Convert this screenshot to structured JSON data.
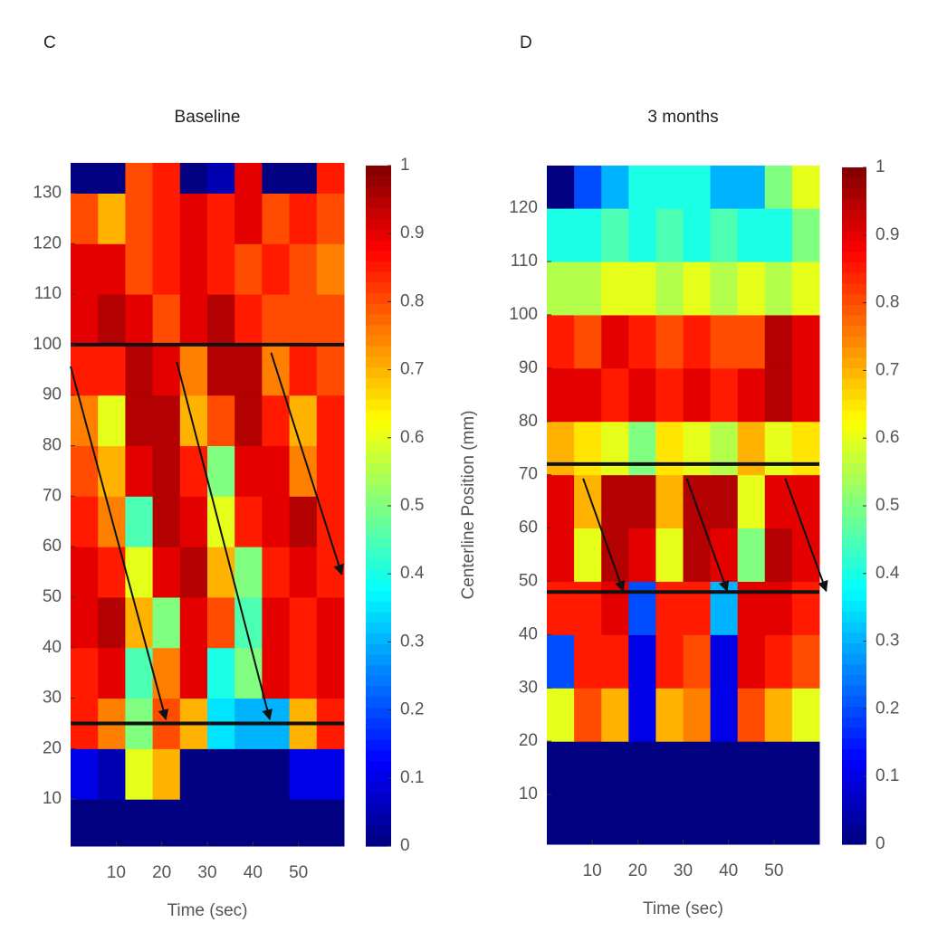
{
  "chart_data": [
    {
      "type": "heatmap",
      "panel": "C",
      "title": "Baseline",
      "xlabel": "Time (sec)",
      "xlim": [
        0,
        60
      ],
      "xticks": [
        10,
        20,
        30,
        40,
        50
      ],
      "ylim": [
        0,
        136
      ],
      "yticks": [
        10,
        20,
        30,
        40,
        50,
        60,
        70,
        80,
        90,
        100,
        110,
        120,
        130
      ],
      "xbins": [
        0,
        6,
        12,
        18,
        24,
        30,
        36,
        42,
        48,
        54,
        60
      ],
      "ybins": [
        0,
        10,
        20,
        30,
        40,
        50,
        60,
        70,
        80,
        90,
        100,
        110,
        120,
        130,
        136
      ],
      "z": [
        [
          0,
          0,
          0,
          0,
          0,
          0,
          0,
          0,
          0,
          0
        ],
        [
          0.1,
          0.05,
          0.6,
          0.7,
          0,
          0,
          0,
          0,
          0.1,
          0.1
        ],
        [
          0.85,
          0.75,
          0.5,
          0.8,
          0.7,
          0.35,
          0.3,
          0.3,
          0.7,
          0.85
        ],
        [
          0.85,
          0.9,
          0.45,
          0.75,
          0.9,
          0.4,
          0.5,
          0.9,
          0.85,
          0.9
        ],
        [
          0.9,
          0.95,
          0.7,
          0.5,
          0.9,
          0.8,
          0.45,
          0.9,
          0.85,
          0.9
        ],
        [
          0.9,
          0.85,
          0.6,
          0.9,
          0.95,
          0.7,
          0.5,
          0.85,
          0.9,
          0.85
        ],
        [
          0.85,
          0.75,
          0.45,
          0.95,
          0.9,
          0.6,
          0.85,
          0.9,
          0.95,
          0.85
        ],
        [
          0.8,
          0.7,
          0.9,
          0.95,
          0.85,
          0.5,
          0.9,
          0.9,
          0.75,
          0.85
        ],
        [
          0.75,
          0.6,
          0.95,
          0.95,
          0.7,
          0.8,
          0.95,
          0.85,
          0.7,
          0.85
        ],
        [
          0.85,
          0.85,
          0.95,
          0.9,
          0.75,
          0.95,
          0.95,
          0.75,
          0.85,
          0.8
        ],
        [
          0.9,
          0.95,
          0.9,
          0.8,
          0.9,
          0.95,
          0.85,
          0.8,
          0.8,
          0.8
        ],
        [
          0.9,
          0.9,
          0.8,
          0.85,
          0.9,
          0.85,
          0.8,
          0.85,
          0.8,
          0.75
        ],
        [
          0.8,
          0.7,
          0.8,
          0.85,
          0.9,
          0.85,
          0.9,
          0.8,
          0.85,
          0.8
        ],
        [
          0,
          0,
          0.8,
          0.85,
          0,
          0.05,
          0.9,
          0,
          0,
          0.85
        ]
      ],
      "hlines": [
        100,
        25
      ],
      "arrows": [
        [
          [
            0,
            95.7
          ],
          [
            20.9,
            25.8
          ]
        ],
        [
          [
            23.3,
            96.6
          ],
          [
            43.7,
            25.8
          ]
        ],
        [
          [
            44,
            98.4
          ],
          [
            59.5,
            54.5
          ]
        ]
      ],
      "clim": [
        0,
        1
      ],
      "cticks": [
        0,
        0.1,
        0.2,
        0.3,
        0.4,
        0.5,
        0.6,
        0.7,
        0.8,
        0.9,
        1
      ]
    },
    {
      "type": "heatmap",
      "panel": "D",
      "title": "3 months",
      "xlabel": "Time (sec)",
      "ylabel": "Centerline Position (mm)",
      "xlim": [
        0,
        60
      ],
      "xticks": [
        10,
        20,
        30,
        40,
        50
      ],
      "ylim": [
        0,
        128
      ],
      "yticks": [
        10,
        20,
        30,
        40,
        50,
        60,
        70,
        80,
        90,
        100,
        110,
        120
      ],
      "xbins": [
        0,
        6,
        12,
        18,
        24,
        30,
        36,
        42,
        48,
        54,
        60
      ],
      "ybins": [
        0,
        10,
        20,
        30,
        40,
        50,
        60,
        70,
        80,
        90,
        100,
        110,
        120,
        128
      ],
      "z": [
        [
          0,
          0,
          0,
          0,
          0,
          0,
          0,
          0,
          0,
          0
        ],
        [
          0,
          0,
          0,
          0,
          0,
          0,
          0,
          0,
          0,
          0
        ],
        [
          0.6,
          0.8,
          0.7,
          0.1,
          0.7,
          0.75,
          0.1,
          0.8,
          0.7,
          0.6
        ],
        [
          0.2,
          0.85,
          0.85,
          0.1,
          0.85,
          0.8,
          0.1,
          0.9,
          0.85,
          0.8
        ],
        [
          0.85,
          0.85,
          0.9,
          0.2,
          0.85,
          0.85,
          0.3,
          0.9,
          0.9,
          0.85
        ],
        [
          0.9,
          0.6,
          0.95,
          0.9,
          0.6,
          0.95,
          0.9,
          0.5,
          0.95,
          0.9
        ],
        [
          0.9,
          0.7,
          0.95,
          0.95,
          0.7,
          0.95,
          0.95,
          0.6,
          0.9,
          0.9
        ],
        [
          0.7,
          0.65,
          0.6,
          0.5,
          0.65,
          0.6,
          0.55,
          0.7,
          0.6,
          0.65
        ],
        [
          0.9,
          0.9,
          0.85,
          0.9,
          0.85,
          0.9,
          0.85,
          0.9,
          0.95,
          0.9
        ],
        [
          0.85,
          0.8,
          0.9,
          0.85,
          0.8,
          0.85,
          0.8,
          0.8,
          0.95,
          0.9
        ],
        [
          0.55,
          0.55,
          0.6,
          0.6,
          0.55,
          0.6,
          0.55,
          0.6,
          0.55,
          0.6
        ],
        [
          0.4,
          0.4,
          0.45,
          0.4,
          0.45,
          0.4,
          0.45,
          0.4,
          0.4,
          0.5
        ],
        [
          0,
          0.2,
          0.3,
          0.4,
          0.4,
          0.4,
          0.3,
          0.3,
          0.5,
          0.6
        ]
      ],
      "hlines": [
        72,
        48
      ],
      "arrows": [
        [
          [
            8,
            69.3
          ],
          [
            16.8,
            48.2
          ]
        ],
        [
          [
            30.8,
            69.3
          ],
          [
            39.7,
            48.2
          ]
        ],
        [
          [
            52.5,
            69.3
          ],
          [
            61.5,
            48.2
          ]
        ]
      ],
      "clim": [
        0,
        1
      ],
      "cticks": [
        0,
        0.1,
        0.2,
        0.3,
        0.4,
        0.5,
        0.6,
        0.7,
        0.8,
        0.9,
        1
      ]
    }
  ]
}
